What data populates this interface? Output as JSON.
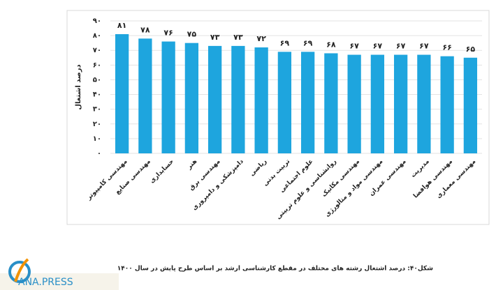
{
  "chart_data": {
    "type": "bar",
    "y_label": "درصد اشتغال",
    "categories": [
      "مهندسی کامپیوتر",
      "مهندسی صنایع",
      "حسابداری",
      "هنر",
      "مهندسی برق",
      "دامپزشکی و دامپروری",
      "ریاضی",
      "تربیت بدنی",
      "علوم اجتماعی",
      "روانشناسی و علوم تربیتی",
      "مهندسی مکانیک",
      "مهندسی مواد و متالورژی",
      "مهندسی عمران",
      "مدیریت",
      "مهندسی هوافضا",
      "مهندسی معماری"
    ],
    "values": [
      81,
      78,
      76,
      75,
      73,
      73,
      72,
      69,
      69,
      68,
      67,
      67,
      67,
      67,
      66,
      65
    ],
    "value_labels": [
      "۸۱",
      "۷۸",
      "۷۶",
      "۷۵",
      "۷۳",
      "۷۳",
      "۷۲",
      "۶۹",
      "۶۹",
      "۶۸",
      "۶۷",
      "۶۷",
      "۶۷",
      "۶۷",
      "۶۶",
      "۶۵"
    ],
    "color": "#1ea5de",
    "ylim": [
      0,
      90
    ],
    "yticks": [
      {
        "value": 0,
        "label": "۰"
      },
      {
        "value": 10,
        "label": "۱۰"
      },
      {
        "value": 20,
        "label": "۲۰"
      },
      {
        "value": 30,
        "label": "۳۰"
      },
      {
        "value": 40,
        "label": "۴۰"
      },
      {
        "value": 50,
        "label": "۵۰"
      },
      {
        "value": 60,
        "label": "۶۰"
      },
      {
        "value": 70,
        "label": "۷۰"
      },
      {
        "value": 80,
        "label": "۸۰"
      },
      {
        "value": 90,
        "label": "۹۰"
      }
    ],
    "grid": true
  },
  "caption": "شکل۴۰: درصد اشتغال رشته های مختلف در مقطع کارشناسی ارشد  بر اساس طرح پایش در سال ۱۴۰۰",
  "watermark": "ANA.PRESS"
}
